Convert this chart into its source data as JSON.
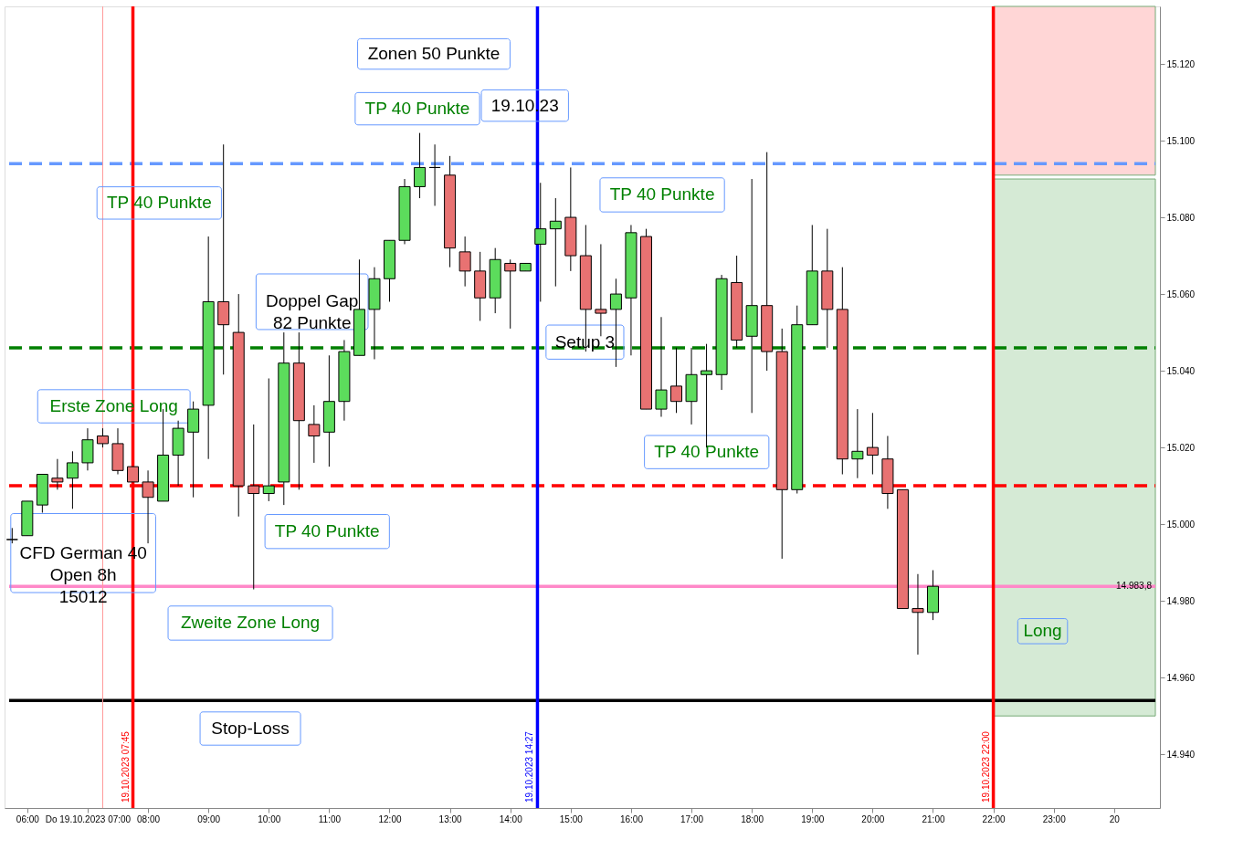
{
  "chart_data": {
    "type": "candlestick",
    "x": [
      "2023-10-19T05:45",
      "2023-10-19T06:00",
      "2023-10-19T06:15",
      "2023-10-19T06:30",
      "2023-10-19T06:45",
      "2023-10-19T07:00",
      "2023-10-19T07:15",
      "2023-10-19T07:30",
      "2023-10-19T07:45",
      "2023-10-19T08:00",
      "2023-10-19T08:15",
      "2023-10-19T08:30",
      "2023-10-19T08:45",
      "2023-10-19T09:00",
      "2023-10-19T09:15",
      "2023-10-19T09:30",
      "2023-10-19T09:45",
      "2023-10-19T10:00",
      "2023-10-19T10:15",
      "2023-10-19T10:30",
      "2023-10-19T10:45",
      "2023-10-19T11:00",
      "2023-10-19T11:15",
      "2023-10-19T11:30",
      "2023-10-19T11:45",
      "2023-10-19T12:00",
      "2023-10-19T12:15",
      "2023-10-19T12:30",
      "2023-10-19T12:45",
      "2023-10-19T13:00",
      "2023-10-19T13:15",
      "2023-10-19T13:30",
      "2023-10-19T13:45",
      "2023-10-19T14:00",
      "2023-10-19T14:15",
      "2023-10-19T14:30",
      "2023-10-19T14:45",
      "2023-10-19T15:00",
      "2023-10-19T15:15",
      "2023-10-19T15:30",
      "2023-10-19T15:45",
      "2023-10-19T16:00",
      "2023-10-19T16:15",
      "2023-10-19T16:30",
      "2023-10-19T16:45",
      "2023-10-19T17:00",
      "2023-10-19T17:15",
      "2023-10-19T17:30",
      "2023-10-19T17:45",
      "2023-10-19T18:00",
      "2023-10-19T18:15",
      "2023-10-19T18:30",
      "2023-10-19T18:45",
      "2023-10-19T19:00",
      "2023-10-19T19:15",
      "2023-10-19T19:30",
      "2023-10-19T19:45",
      "2023-10-19T20:00",
      "2023-10-19T20:15",
      "2023-10-19T20:30",
      "2023-10-19T20:45",
      "2023-10-19T21:00"
    ],
    "ohlc": [
      [
        14996,
        14999,
        14995,
        14996
      ],
      [
        14997,
        15006,
        14997,
        15006
      ],
      [
        15005,
        15013,
        15003,
        15013
      ],
      [
        15012,
        15017,
        15009,
        15011
      ],
      [
        15012,
        15019,
        15004,
        15016
      ],
      [
        15016,
        15025,
        15014,
        15022
      ],
      [
        15023,
        15025,
        15020,
        15021
      ],
      [
        15021,
        15025,
        15013,
        15014
      ],
      [
        15015,
        15015,
        15011,
        15011
      ],
      [
        15011,
        15014,
        14995,
        15007
      ],
      [
        15006,
        15030,
        15006,
        15018
      ],
      [
        15018,
        15027,
        15010,
        15025
      ],
      [
        15024,
        15032,
        15007,
        15030
      ],
      [
        15031,
        15075,
        15017,
        15058
      ],
      [
        15058,
        15099,
        15039,
        15052
      ],
      [
        15050,
        15060,
        15002,
        15010
      ],
      [
        15010,
        15026,
        14983,
        15008
      ],
      [
        15008,
        15038,
        15006,
        15010
      ],
      [
        15011,
        15050,
        15005,
        15042
      ],
      [
        15042,
        15050,
        15009,
        15027
      ],
      [
        15026,
        15031,
        15016,
        15023
      ],
      [
        15024,
        15044,
        15015,
        15032
      ],
      [
        15032,
        15048,
        15027,
        15045
      ],
      [
        15044,
        15069,
        15044,
        15056
      ],
      [
        15056,
        15067,
        15043,
        15064
      ],
      [
        15064,
        15074,
        15058,
        15074
      ],
      [
        15074,
        15090,
        15073,
        15088
      ],
      [
        15088,
        15102,
        15085,
        15093
      ],
      [
        15093,
        15099,
        15083,
        15093
      ],
      [
        15091,
        15096,
        15067,
        15072
      ],
      [
        15071,
        15075,
        15062,
        15066
      ],
      [
        15066,
        15071,
        15053,
        15059
      ],
      [
        15059,
        15072,
        15055,
        15069
      ],
      [
        15068,
        15069,
        15051,
        15066
      ],
      [
        15066,
        15068,
        15066,
        15068
      ],
      [
        15073,
        15089,
        15058,
        15077
      ],
      [
        15077,
        15085,
        15062,
        15079
      ],
      [
        15080,
        15093,
        15066,
        15070
      ],
      [
        15070,
        15078,
        15045,
        15056
      ],
      [
        15056,
        15073,
        15049,
        15055
      ],
      [
        15056,
        15064,
        15041,
        15060
      ],
      [
        15059,
        15078,
        15044,
        15076
      ],
      [
        15075,
        15077,
        15030,
        15030
      ],
      [
        15030,
        15054,
        15028,
        15035
      ],
      [
        15036,
        15046,
        15029,
        15032
      ],
      [
        15032,
        15046,
        15026,
        15039
      ],
      [
        15039,
        15047,
        15020,
        15040
      ],
      [
        15039,
        15065,
        15035,
        15064
      ],
      [
        15063,
        15070,
        15046,
        15048
      ],
      [
        15049,
        15090,
        15029,
        15057
      ],
      [
        15057,
        15097,
        15040,
        15045
      ],
      [
        15045,
        15051,
        14991,
        15009
      ],
      [
        15009,
        15057,
        15008,
        15052
      ],
      [
        15052,
        15078,
        15052,
        15066
      ],
      [
        15066,
        15077,
        15046,
        15056
      ],
      [
        15056,
        15067,
        15013,
        15017
      ],
      [
        15017,
        15030,
        15012,
        15019
      ],
      [
        15020,
        15029,
        15013,
        15018
      ],
      [
        15017,
        15023,
        15004,
        15008
      ],
      [
        15009,
        15009,
        14978,
        14978
      ],
      [
        14978,
        14987,
        14966,
        14977
      ],
      [
        14977,
        14988,
        14975,
        14983.8
      ]
    ],
    "xlim": [
      "2023-10-19T05:42",
      "2023-10-20T00:41"
    ],
    "xticks": [
      {
        "value": "2023-10-19T06:00",
        "label": "06:00"
      },
      {
        "value": "2023-10-19T07:00",
        "label": "Do 19.10.2023 07:00"
      },
      {
        "value": "2023-10-19T08:00",
        "label": "08:00"
      },
      {
        "value": "2023-10-19T09:00",
        "label": "09:00"
      },
      {
        "value": "2023-10-19T10:00",
        "label": "10:00"
      },
      {
        "value": "2023-10-19T11:00",
        "label": "11:00"
      },
      {
        "value": "2023-10-19T12:00",
        "label": "12:00"
      },
      {
        "value": "2023-10-19T13:00",
        "label": "13:00"
      },
      {
        "value": "2023-10-19T14:00",
        "label": "14:00"
      },
      {
        "value": "2023-10-19T15:00",
        "label": "15:00"
      },
      {
        "value": "2023-10-19T16:00",
        "label": "16:00"
      },
      {
        "value": "2023-10-19T17:00",
        "label": "17:00"
      },
      {
        "value": "2023-10-19T18:00",
        "label": "18:00"
      },
      {
        "value": "2023-10-19T19:00",
        "label": "19:00"
      },
      {
        "value": "2023-10-19T20:00",
        "label": "20:00"
      },
      {
        "value": "2023-10-19T21:00",
        "label": "21:00"
      },
      {
        "value": "2023-10-19T22:00",
        "label": "22:00"
      },
      {
        "value": "2023-10-19T23:00",
        "label": "23:00"
      },
      {
        "value": "2023-10-20T00:00",
        "label": "20"
      }
    ],
    "ylim": [
      14926,
      15135
    ],
    "yticks": [
      {
        "value": 14940,
        "label": "14.940"
      },
      {
        "value": 14960,
        "label": "14.960"
      },
      {
        "value": 14980,
        "label": "14.980"
      },
      {
        "value": 15000,
        "label": "15.000"
      },
      {
        "value": 15020,
        "label": "15.020"
      },
      {
        "value": 15040,
        "label": "15.040"
      },
      {
        "value": 15060,
        "label": "15.060"
      },
      {
        "value": 15080,
        "label": "15.080"
      },
      {
        "value": 15100,
        "label": "15.100"
      },
      {
        "value": 15120,
        "label": "15.120"
      }
    ],
    "ref_lines": [
      {
        "axis": "y",
        "value": 15094,
        "color": "#6699ff",
        "line_style": "dashed"
      },
      {
        "axis": "y",
        "value": 15046,
        "color": "#008000",
        "line_style": "dashed"
      },
      {
        "axis": "y",
        "value": 15010,
        "color": "#ff0000",
        "line_style": "dashed"
      },
      {
        "axis": "y",
        "value": 14983.8,
        "label": "14.983,8",
        "color": "#ff88c8"
      },
      {
        "axis": "y",
        "value": 14954,
        "color": "#000000"
      },
      {
        "axis": "x",
        "value": "2023-10-19T07:15",
        "color": "#ff9999"
      },
      {
        "axis": "x",
        "value": "2023-10-19T07:45",
        "label": "19.10.2023 07:45",
        "color": "#ff0000"
      },
      {
        "axis": "x",
        "value": "2023-10-19T14:27",
        "label": "19.10.2023 14:27",
        "color": "#0000ff"
      },
      {
        "axis": "x",
        "value": "2023-10-19T22:00",
        "label": "19.10.2023 22:00",
        "color": "#ff0000"
      }
    ],
    "bands": [
      {
        "axis": "y",
        "from": 15091,
        "to": 15135,
        "color": "#ffd6d6"
      },
      {
        "axis": "y",
        "from": 14950,
        "to": 15090,
        "color": "#d5ead5"
      }
    ],
    "annotations": [
      "Zonen 50 Punkte",
      "19.10.23",
      "TP 40 Punkte",
      "TP 40 Punkte",
      "TP 40 Punkte",
      "TP 40 Punkte",
      "TP 40 Punkte",
      "Doppel Gap\n82 Punkte",
      "Setup 3",
      "Erste Zone Long",
      "CFD German 40\nOpen 8h\n15012",
      "Zweite Zone Long",
      "Stop-Loss",
      "Long"
    ]
  }
}
